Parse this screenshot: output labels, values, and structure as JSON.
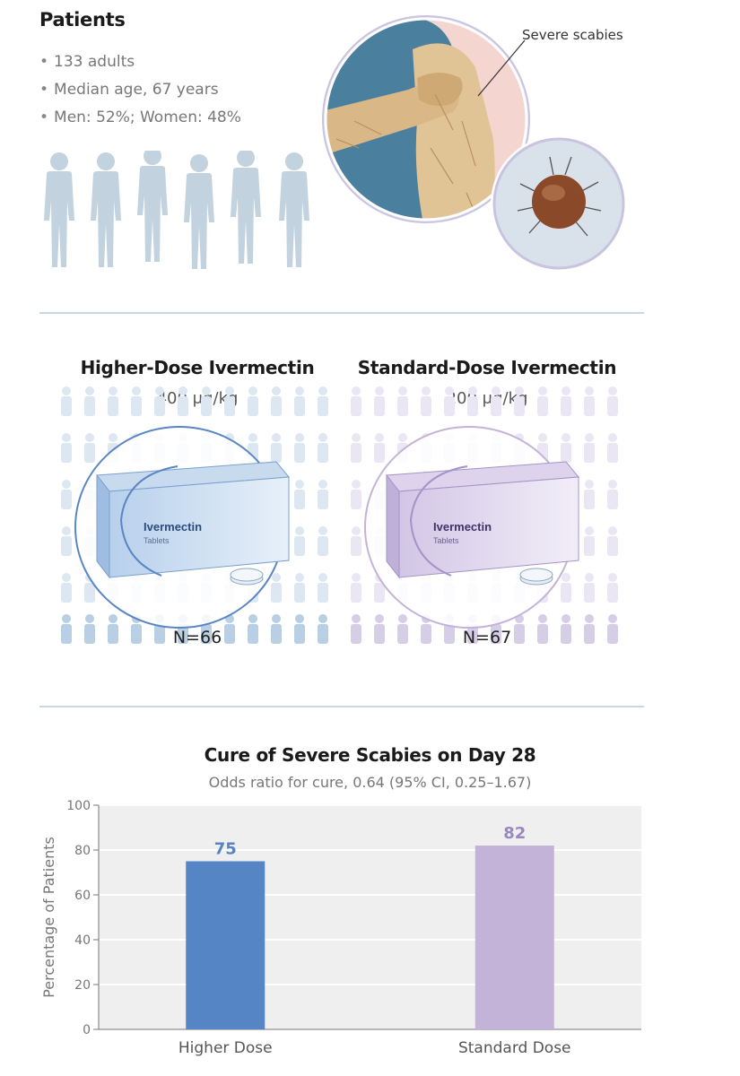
{
  "patients": {
    "title": "Patients",
    "items": [
      "133 adults",
      "Median age, 67 years",
      "Men: 52%; Women: 48%"
    ],
    "illustration_label": "Severe scabies"
  },
  "arms": [
    {
      "title": "Higher-Dose Ivermectin",
      "dose": "400 μg/kg",
      "n": "N=66",
      "box_brand": "Ivermectin",
      "box_sub": "Tablets",
      "color": "#5b86c4"
    },
    {
      "title": "Standard-Dose Ivermectin",
      "dose": "200 μg/kg",
      "n": "N=67",
      "box_brand": "Ivermectin",
      "box_sub": "Tablets",
      "color": "#b8a6d4"
    }
  ],
  "chart_data": {
    "type": "bar",
    "title": "Cure of Severe Scabies on Day 28",
    "subtitle": "Odds ratio for cure, 0.64 (95% CI, 0.25–1.67)",
    "categories": [
      "Higher Dose",
      "Standard Dose"
    ],
    "values": [
      75,
      82
    ],
    "value_labels": [
      "75",
      "82"
    ],
    "colors": [
      "#5585c5",
      "#c4b3d8"
    ],
    "label_colors": [
      "#5585c5",
      "#9b86c2"
    ],
    "ylabel": "Percentage of Patients",
    "xlabel": "",
    "ylim": [
      0,
      100
    ],
    "yticks": [
      0,
      20,
      40,
      60,
      80,
      100
    ],
    "grid": true,
    "legend": "none"
  }
}
